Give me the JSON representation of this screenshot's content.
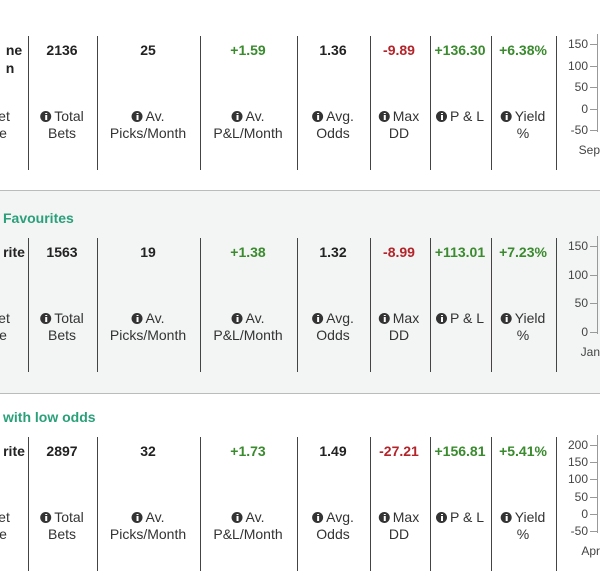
{
  "columns": [
    {
      "label": [
        "Total",
        "Bets"
      ]
    },
    {
      "label": [
        "Av.",
        "Picks/Month"
      ]
    },
    {
      "label": [
        "Av.",
        "P&L/Month"
      ]
    },
    {
      "label": [
        "Avg.",
        "Odds"
      ]
    },
    {
      "label": [
        "Max",
        "DD"
      ]
    },
    {
      "label": [
        "P & L"
      ]
    },
    {
      "label": [
        "Yield",
        "%"
      ]
    }
  ],
  "blocks": [
    {
      "name": [
        "ne",
        "n"
      ],
      "name_label": [
        "et",
        "e"
      ],
      "values": [
        "2136",
        "25",
        "+1.59",
        "1.36",
        "-9.89",
        "+136.30",
        "+6.38%"
      ],
      "axis_ticks": [
        "150",
        "100",
        "50",
        "0",
        "-50"
      ],
      "axis_month": "Sep"
    },
    {
      "header": "Favourites",
      "name": [
        "rite"
      ],
      "name_label": [
        "et",
        "e"
      ],
      "values": [
        "1563",
        "19",
        "+1.38",
        "1.32",
        "-8.99",
        "+113.01",
        "+7.23%"
      ],
      "axis_ticks": [
        "150",
        "100",
        "50",
        "0"
      ],
      "axis_month": "Jan"
    },
    {
      "header": "with low odds",
      "name": [
        "rite"
      ],
      "name_label": [
        "et",
        "e"
      ],
      "values": [
        "2897",
        "32",
        "+1.73",
        "1.49",
        "-27.21",
        "+156.81",
        "+5.41%"
      ],
      "axis_ticks": [
        "200",
        "150",
        "100",
        "50",
        "0",
        "-50"
      ],
      "axis_month": "Apr"
    }
  ]
}
